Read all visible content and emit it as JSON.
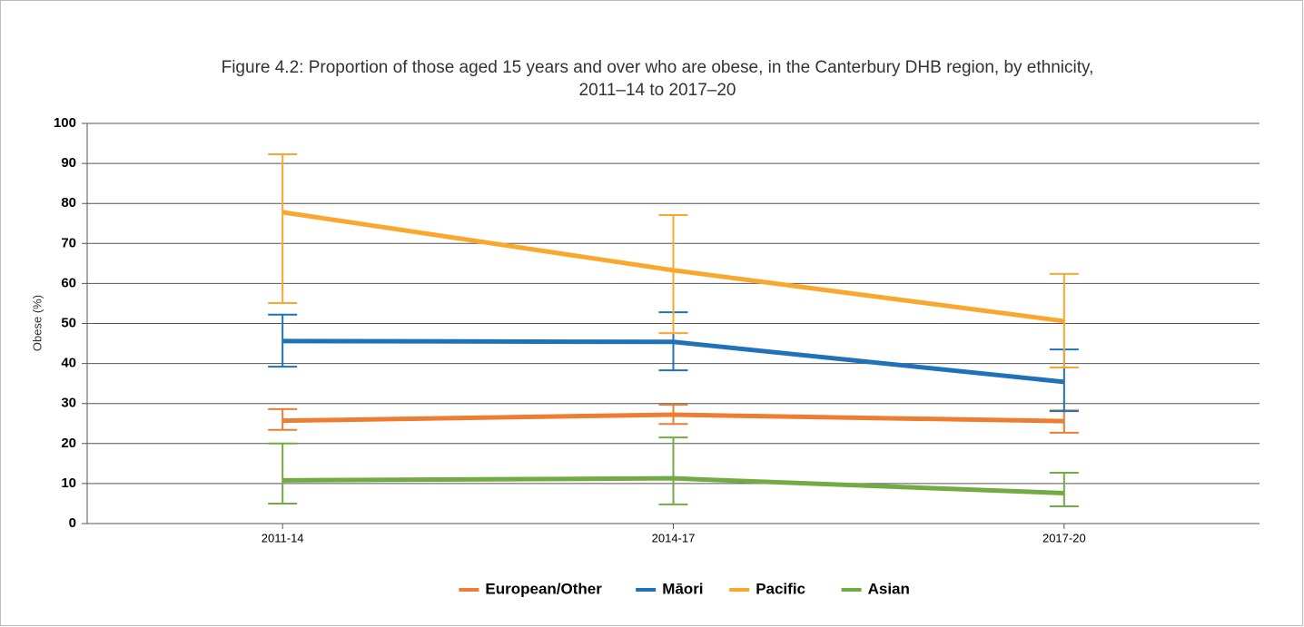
{
  "chart_data": {
    "type": "line",
    "title": [
      "Figure 4.2: Proportion of those aged 15 years and over who are obese, in the Canterbury DHB region, by ethnicity,",
      "2011–14 to 2017–20"
    ],
    "y_label": "Obese (%)",
    "categories": [
      "2011-14",
      "2014-17",
      "2017-20"
    ],
    "series": [
      {
        "name": "European/Other",
        "color": "#ed7d31",
        "values": [
          25.7,
          27.2,
          25.6
        ],
        "lower": [
          23.4,
          24.9,
          22.7
        ],
        "upper": [
          28.6,
          29.7,
          28.3
        ]
      },
      {
        "name": "Māori",
        "color": "#1f72b8",
        "values": [
          45.6,
          45.4,
          35.4
        ],
        "lower": [
          39.2,
          38.3,
          28.1
        ],
        "upper": [
          52.2,
          52.8,
          43.5
        ]
      },
      {
        "name": "Pacific",
        "color": "#f9a82e",
        "values": [
          77.8,
          63.3,
          50.6
        ],
        "lower": [
          55.1,
          47.6,
          39.0
        ],
        "upper": [
          92.3,
          77.1,
          62.4
        ]
      },
      {
        "name": "Asian",
        "color": "#72ab43",
        "values": [
          10.8,
          11.3,
          7.6
        ],
        "lower": [
          5.0,
          4.8,
          4.3
        ],
        "upper": [
          20.0,
          21.5,
          12.7
        ]
      }
    ],
    "ylim": [
      0,
      100
    ],
    "yticks": [
      0,
      10,
      20,
      30,
      40,
      50,
      60,
      70,
      80,
      90,
      100
    ],
    "grid": true,
    "legend": "bottom"
  }
}
